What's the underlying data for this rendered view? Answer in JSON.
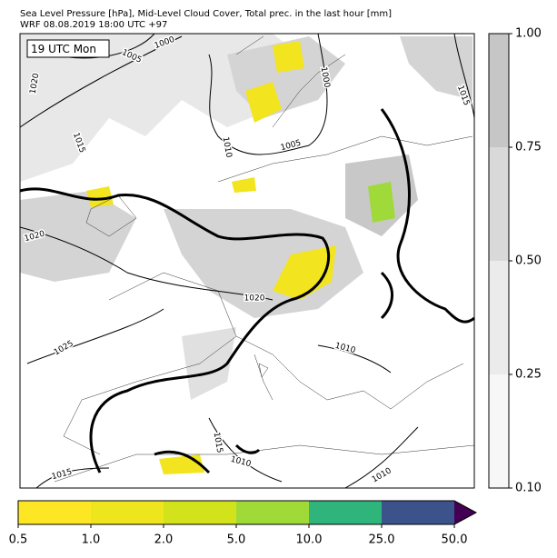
{
  "header": {
    "title": "Sea Level Pressure [hPa], Mid-Level Cloud Cover, Total prec. in the last hour [mm]",
    "subtitle": "WRF 08.08.2019 18:00 UTC +97"
  },
  "map": {
    "time_label": "19 UTC Mon",
    "isobar_labels": [
      "1000",
      "1005",
      "1000",
      "1015",
      "1020",
      "1015",
      "1010",
      "1005",
      "1020",
      "1020",
      "1025",
      "1010",
      "1015",
      "1010",
      "1015",
      "1010"
    ]
  },
  "cloud_colorbar": {
    "ticks": [
      "0.10",
      "0.25",
      "0.50",
      "0.75",
      "1.00"
    ],
    "colors": [
      "#f7f7f7",
      "#ebebeb",
      "#d9d9d9",
      "#c6c6c6"
    ]
  },
  "precip_colorbar": {
    "ticks": [
      "0.5",
      "1.0",
      "2.0",
      "5.0",
      "10.0",
      "25.0",
      "50.0"
    ],
    "colors": [
      "#fde725",
      "#efe51c",
      "#d2e21b",
      "#a0da39",
      "#2fb47c",
      "#3b528b",
      "#440154"
    ]
  }
}
